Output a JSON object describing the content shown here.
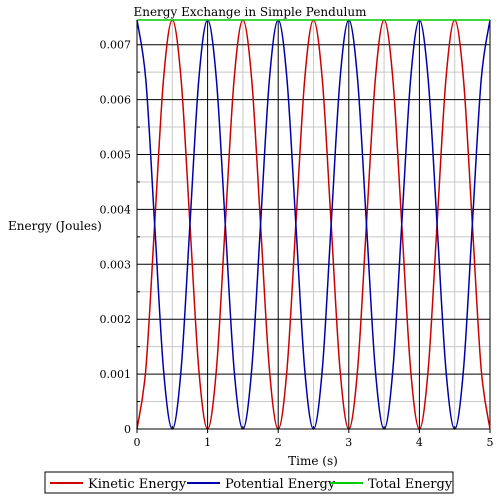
{
  "chart_data": {
    "type": "line",
    "title": "Energy Exchange in Simple Pendulum",
    "xlabel": "Time (s)",
    "ylabel": "Energy (Joules)",
    "xlim": [
      0,
      5
    ],
    "ylim": [
      0,
      0.00745
    ],
    "x_ticks": [
      0,
      1,
      2,
      3,
      4,
      5
    ],
    "x_tick_labels": [
      "0",
      "1",
      "2",
      "3",
      "4",
      "5"
    ],
    "y_ticks": [
      0,
      0.001,
      0.002,
      0.003,
      0.004,
      0.005,
      0.006,
      0.007
    ],
    "y_tick_labels": [
      "0",
      "0.001",
      "0.002",
      "0.003",
      "0.004",
      "0.005",
      "0.006",
      "0.007"
    ],
    "grid": true,
    "legend_position": "bottom",
    "series": [
      {
        "name": "Kinetic Energy",
        "color": "#cc0000",
        "x": [
          0,
          0.125,
          0.25,
          0.375,
          0.5,
          0.625,
          0.75,
          0.875,
          1.0,
          1.125,
          1.25,
          1.375,
          1.5,
          1.625,
          1.75,
          1.875,
          2.0,
          2.125,
          2.25,
          2.375,
          2.5,
          2.625,
          2.75,
          2.875,
          3.0,
          3.125,
          3.25,
          3.375,
          3.5,
          3.625,
          3.75,
          3.875,
          4.0,
          4.125,
          4.25,
          4.375,
          4.5,
          4.625,
          4.75,
          4.875,
          5.0
        ],
        "values": [
          0,
          0.00109,
          0.00373,
          0.00636,
          0.00745,
          0.00636,
          0.00373,
          0.00109,
          0,
          0.00109,
          0.00373,
          0.00636,
          0.00745,
          0.00636,
          0.00373,
          0.00109,
          0,
          0.00109,
          0.00373,
          0.00636,
          0.00745,
          0.00636,
          0.00373,
          0.00109,
          0,
          0.00109,
          0.00373,
          0.00636,
          0.00745,
          0.00636,
          0.00373,
          0.00109,
          0,
          0.00109,
          0.00373,
          0.00636,
          0.00745,
          0.00636,
          0.00373,
          0.00109,
          0
        ]
      },
      {
        "name": "Potential Energy",
        "color": "#0000aa",
        "x": [
          0,
          0.125,
          0.25,
          0.375,
          0.5,
          0.625,
          0.75,
          0.875,
          1.0,
          1.125,
          1.25,
          1.375,
          1.5,
          1.625,
          1.75,
          1.875,
          2.0,
          2.125,
          2.25,
          2.375,
          2.5,
          2.625,
          2.75,
          2.875,
          3.0,
          3.125,
          3.25,
          3.375,
          3.5,
          3.625,
          3.75,
          3.875,
          4.0,
          4.125,
          4.25,
          4.375,
          4.5,
          4.625,
          4.75,
          4.875,
          5.0
        ],
        "values": [
          0.00745,
          0.00636,
          0.00373,
          0.00109,
          0,
          0.00109,
          0.00373,
          0.00636,
          0.00745,
          0.00636,
          0.00373,
          0.00109,
          0,
          0.00109,
          0.00373,
          0.00636,
          0.00745,
          0.00636,
          0.00373,
          0.00109,
          0,
          0.00109,
          0.00373,
          0.00636,
          0.00745,
          0.00636,
          0.00373,
          0.00109,
          0,
          0.00109,
          0.00373,
          0.00636,
          0.00745,
          0.00636,
          0.00373,
          0.00109,
          0,
          0.00109,
          0.00373,
          0.00636,
          0.00745
        ]
      },
      {
        "name": "Total Energy",
        "color": "#00cc00",
        "x": [
          0,
          5
        ],
        "values": [
          0.00745,
          0.00745
        ]
      }
    ]
  }
}
